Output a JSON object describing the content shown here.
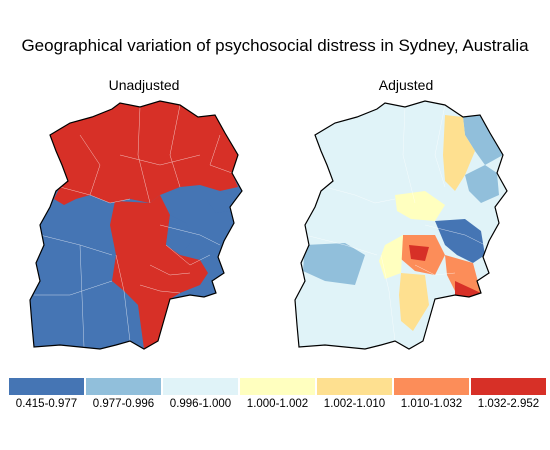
{
  "title": "Geographical variation of psychosocial distress in Sydney, Australia",
  "panels": [
    {
      "title": "Unadjusted"
    },
    {
      "title": "Adjusted"
    }
  ],
  "legend": [
    {
      "label": "0.415-0.977",
      "color": "#4575b4"
    },
    {
      "label": "0.977-0.996",
      "color": "#91bfdb"
    },
    {
      "label": "0.996-1.000",
      "color": "#e0f3f8"
    },
    {
      "label": "1.000-1.002",
      "color": "#ffffbf"
    },
    {
      "label": "1.002-1.010",
      "color": "#fee090"
    },
    {
      "label": "1.010-1.032",
      "color": "#fc8d59"
    },
    {
      "label": "1.032-2.952",
      "color": "#d73027"
    }
  ]
}
